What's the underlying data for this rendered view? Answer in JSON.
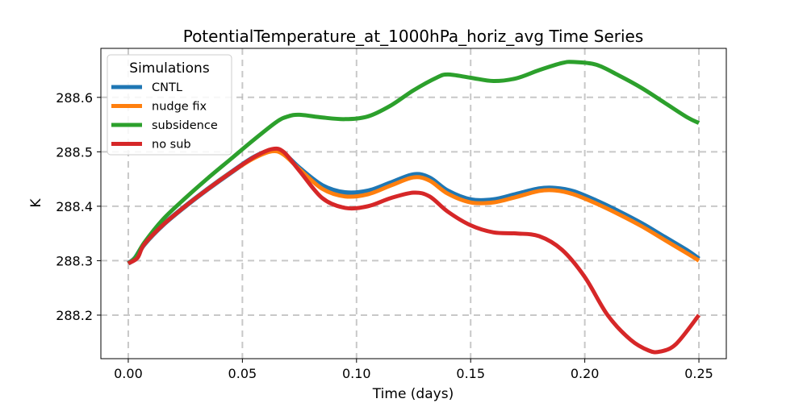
{
  "chart_data": {
    "type": "line",
    "title": "PotentialTemperature_at_1000hPa_horiz_avg Time Series",
    "xlabel": "Time (days)",
    "ylabel": "K",
    "xlim": [
      -0.012,
      0.262
    ],
    "ylim": [
      288.12,
      288.69
    ],
    "xticks": [
      0.0,
      0.05,
      0.1,
      0.15,
      0.2,
      0.25
    ],
    "xtick_labels": [
      "0.00",
      "0.05",
      "0.10",
      "0.15",
      "0.20",
      "0.25"
    ],
    "yticks": [
      288.2,
      288.3,
      288.4,
      288.5,
      288.6
    ],
    "ytick_labels": [
      "288.2",
      "288.3",
      "288.4",
      "288.5",
      "288.6"
    ],
    "grid": true,
    "legend": {
      "title": "Simulations",
      "position": "top-left"
    },
    "series": [
      {
        "name": "CNTL",
        "color": "#1f77b4",
        "x": [
          0.0,
          0.003,
          0.007,
          0.015,
          0.025,
          0.035,
          0.045,
          0.055,
          0.063,
          0.068,
          0.075,
          0.085,
          0.095,
          0.105,
          0.115,
          0.125,
          0.132,
          0.14,
          0.15,
          0.16,
          0.17,
          0.18,
          0.187,
          0.195,
          0.205,
          0.215,
          0.225,
          0.235,
          0.245,
          0.25
        ],
        "values": [
          288.295,
          288.305,
          288.33,
          288.365,
          288.4,
          288.432,
          288.462,
          288.49,
          288.503,
          288.497,
          288.47,
          288.438,
          288.425,
          288.428,
          288.443,
          288.458,
          288.452,
          288.428,
          288.412,
          288.412,
          288.422,
          288.432,
          288.433,
          288.427,
          288.41,
          288.39,
          288.368,
          288.343,
          288.318,
          288.303
        ]
      },
      {
        "name": "nudge fix",
        "color": "#ff7f0e",
        "x": [
          0.0,
          0.003,
          0.007,
          0.015,
          0.025,
          0.035,
          0.045,
          0.055,
          0.063,
          0.068,
          0.075,
          0.085,
          0.095,
          0.105,
          0.115,
          0.125,
          0.132,
          0.14,
          0.15,
          0.16,
          0.17,
          0.18,
          0.187,
          0.195,
          0.205,
          0.215,
          0.225,
          0.235,
          0.245,
          0.25
        ],
        "values": [
          288.295,
          288.305,
          288.33,
          288.365,
          288.4,
          288.432,
          288.462,
          288.488,
          288.501,
          288.495,
          288.468,
          288.432,
          288.418,
          288.422,
          288.438,
          288.453,
          288.447,
          288.423,
          288.407,
          288.407,
          288.417,
          288.428,
          288.429,
          288.422,
          288.405,
          288.385,
          288.363,
          288.338,
          288.313,
          288.3
        ]
      },
      {
        "name": "subsidence",
        "color": "#2ca02c",
        "x": [
          0.0,
          0.003,
          0.007,
          0.015,
          0.025,
          0.035,
          0.045,
          0.055,
          0.065,
          0.07,
          0.075,
          0.085,
          0.095,
          0.105,
          0.115,
          0.125,
          0.135,
          0.14,
          0.15,
          0.16,
          0.17,
          0.18,
          0.19,
          0.195,
          0.205,
          0.215,
          0.225,
          0.235,
          0.245,
          0.25
        ],
        "values": [
          288.295,
          288.305,
          288.333,
          288.375,
          288.415,
          288.452,
          288.487,
          288.522,
          288.555,
          288.565,
          288.568,
          288.563,
          288.56,
          288.565,
          288.585,
          288.613,
          288.636,
          288.642,
          288.636,
          288.63,
          288.635,
          288.65,
          288.663,
          288.665,
          288.66,
          288.64,
          288.617,
          288.59,
          288.563,
          288.553
        ]
      },
      {
        "name": "no sub",
        "color": "#d62728",
        "x": [
          0.0,
          0.004,
          0.007,
          0.015,
          0.025,
          0.035,
          0.045,
          0.055,
          0.063,
          0.068,
          0.075,
          0.085,
          0.095,
          0.105,
          0.115,
          0.125,
          0.132,
          0.14,
          0.15,
          0.16,
          0.17,
          0.18,
          0.19,
          0.2,
          0.21,
          0.22,
          0.228,
          0.233,
          0.24,
          0.25
        ],
        "values": [
          288.295,
          288.305,
          288.33,
          288.365,
          288.4,
          288.432,
          288.462,
          288.49,
          288.505,
          288.5,
          288.465,
          288.415,
          288.397,
          288.4,
          288.415,
          288.425,
          288.418,
          288.39,
          288.365,
          288.352,
          288.35,
          288.345,
          288.32,
          288.27,
          288.2,
          288.155,
          288.135,
          288.133,
          288.147,
          288.2
        ]
      }
    ]
  }
}
